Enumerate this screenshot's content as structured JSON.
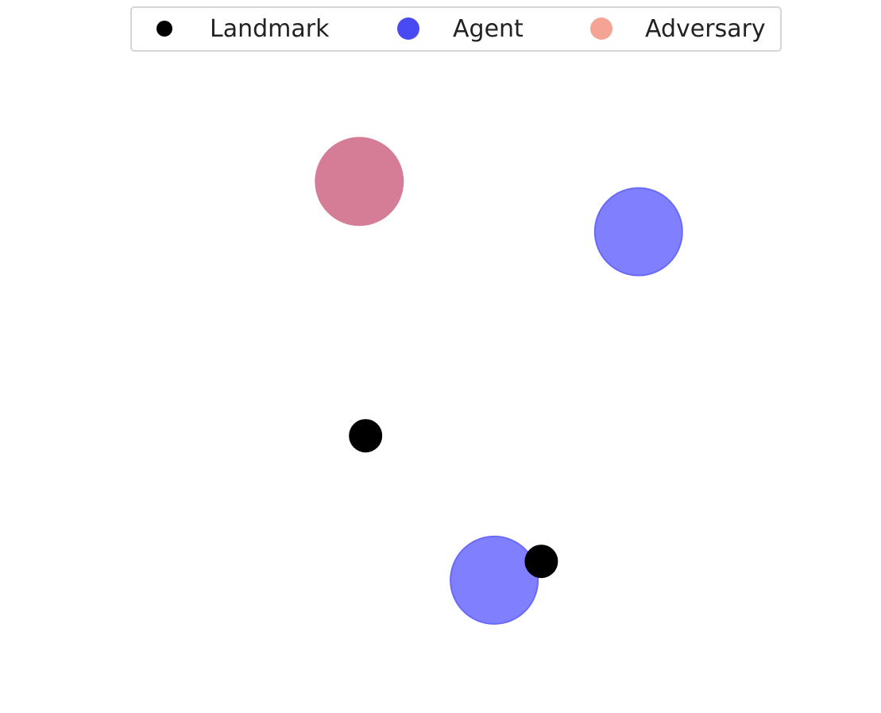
{
  "chart_data": {
    "type": "scatter",
    "title": "",
    "xlabel": "",
    "ylabel": "",
    "xlim": [
      -1,
      1
    ],
    "ylim": [
      -1,
      1
    ],
    "grid": false,
    "axes_visible": false,
    "legend": {
      "placement": "top-center",
      "entries": [
        {
          "key": "landmark",
          "label": "Landmark",
          "color": "#000000"
        },
        {
          "key": "agent",
          "label": "Agent",
          "color": "#4a4af5"
        },
        {
          "key": "adversary",
          "label": "Adversary",
          "color": "#f4a394"
        }
      ]
    },
    "series": [
      {
        "name": "Landmark",
        "kind": "landmark",
        "color": "#000000",
        "points": [
          {
            "x": -0.24,
            "y": -0.16
          },
          {
            "x": 0.32,
            "y": -0.56
          }
        ]
      },
      {
        "name": "Agent",
        "kind": "agent",
        "color": "#8080fe",
        "points": [
          {
            "x": 0.17,
            "y": -0.62
          },
          {
            "x": 0.63,
            "y": 0.49
          }
        ]
      },
      {
        "name": "Adversary",
        "kind": "adversary",
        "color": "#d57d97",
        "points": [
          {
            "x": -0.26,
            "y": 0.65
          }
        ]
      }
    ]
  }
}
